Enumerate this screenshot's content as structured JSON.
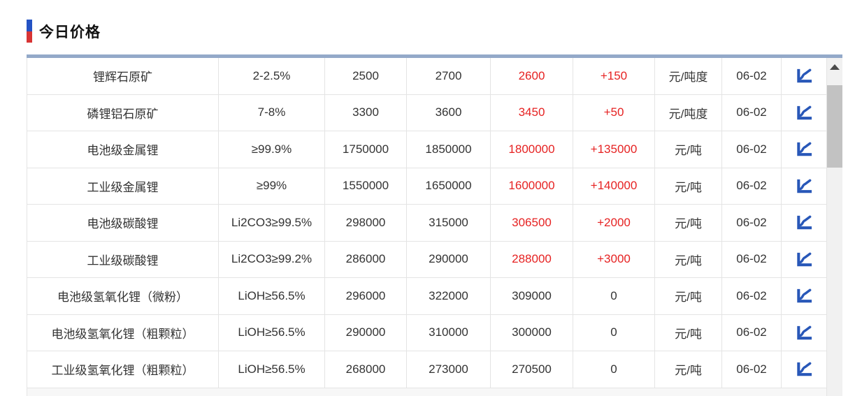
{
  "header": {
    "title": "今日价格"
  },
  "colors": {
    "accent_bar": "#93a9c9",
    "marker_blue": "#2453c4",
    "marker_red": "#d83434",
    "price_up_red": "#e62222",
    "chart_icon_blue": "#2857b8"
  },
  "table": {
    "rows": [
      {
        "name": "锂辉石原矿",
        "spec": "2-2.5%",
        "low": "2500",
        "high": "2700",
        "avg": "2600",
        "change": "+150",
        "unit": "元/吨度",
        "date": "06-02",
        "up": true
      },
      {
        "name": "磷锂铝石原矿",
        "spec": "7-8%",
        "low": "3300",
        "high": "3600",
        "avg": "3450",
        "change": "+50",
        "unit": "元/吨度",
        "date": "06-02",
        "up": true
      },
      {
        "name": "电池级金属锂",
        "spec": "≥99.9%",
        "low": "1750000",
        "high": "1850000",
        "avg": "1800000",
        "change": "+135000",
        "unit": "元/吨",
        "date": "06-02",
        "up": true
      },
      {
        "name": "工业级金属锂",
        "spec": "≥99%",
        "low": "1550000",
        "high": "1650000",
        "avg": "1600000",
        "change": "+140000",
        "unit": "元/吨",
        "date": "06-02",
        "up": true
      },
      {
        "name": "电池级碳酸锂",
        "spec": "Li2CO3≥99.5%",
        "low": "298000",
        "high": "315000",
        "avg": "306500",
        "change": "+2000",
        "unit": "元/吨",
        "date": "06-02",
        "up": true
      },
      {
        "name": "工业级碳酸锂",
        "spec": "Li2CO3≥99.2%",
        "low": "286000",
        "high": "290000",
        "avg": "288000",
        "change": "+3000",
        "unit": "元/吨",
        "date": "06-02",
        "up": true
      },
      {
        "name": "电池级氢氧化锂（微粉）",
        "spec": "LiOH≥56.5%",
        "low": "296000",
        "high": "322000",
        "avg": "309000",
        "change": "0",
        "unit": "元/吨",
        "date": "06-02",
        "up": false
      },
      {
        "name": "电池级氢氧化锂（粗颗粒）",
        "spec": "LiOH≥56.5%",
        "low": "290000",
        "high": "310000",
        "avg": "300000",
        "change": "0",
        "unit": "元/吨",
        "date": "06-02",
        "up": false
      },
      {
        "name": "工业级氢氧化锂（粗颗粒）",
        "spec": "LiOH≥56.5%",
        "low": "268000",
        "high": "273000",
        "avg": "270500",
        "change": "0",
        "unit": "元/吨",
        "date": "06-02",
        "up": false
      }
    ]
  }
}
